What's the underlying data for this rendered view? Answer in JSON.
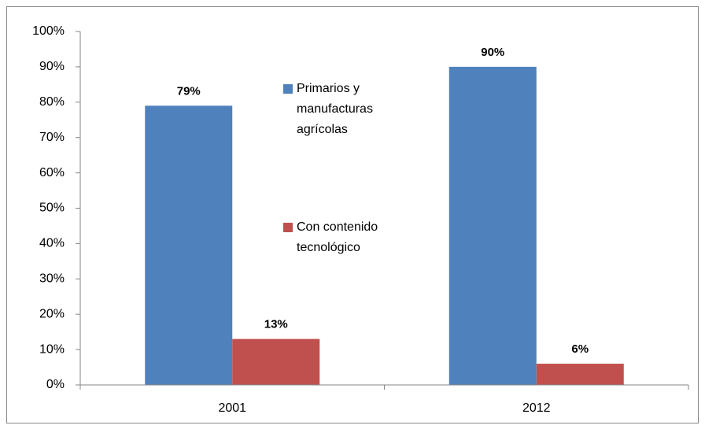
{
  "chart_data": {
    "type": "bar",
    "categories": [
      "2001",
      "2012"
    ],
    "series": [
      {
        "name": "Primarios y manufacturas agrícolas",
        "color": "#4f81bd",
        "values": [
          79,
          90
        ],
        "value_labels": [
          "79%",
          "90%"
        ]
      },
      {
        "name": "Con contenido tecnológico",
        "color": "#c0504d",
        "values": [
          13,
          6
        ],
        "value_labels": [
          "13%",
          "6%"
        ]
      }
    ],
    "ylim": [
      0,
      100
    ],
    "yticks": [
      {
        "value": 0,
        "label": "0%"
      },
      {
        "value": 10,
        "label": "10%"
      },
      {
        "value": 20,
        "label": "20%"
      },
      {
        "value": 30,
        "label": "30%"
      },
      {
        "value": 40,
        "label": "40%"
      },
      {
        "value": 50,
        "label": "50%"
      },
      {
        "value": 60,
        "label": "60%"
      },
      {
        "value": 70,
        "label": "70%"
      },
      {
        "value": 80,
        "label": "80%"
      },
      {
        "value": 90,
        "label": "90%"
      },
      {
        "value": 100,
        "label": "100%"
      }
    ],
    "grid": false
  }
}
